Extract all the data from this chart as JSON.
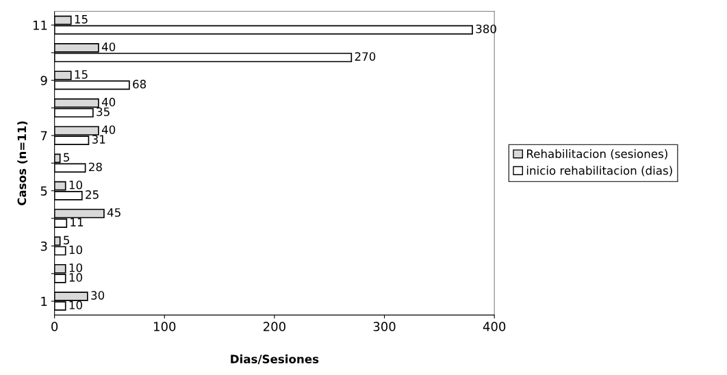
{
  "chart_data": {
    "type": "bar",
    "orientation": "horizontal",
    "xlabel": "Dias/Sesiones",
    "ylabel": "Casos (n=11)",
    "categories": [
      "11",
      null,
      "9",
      null,
      "7",
      null,
      "5",
      null,
      "3",
      null,
      "1"
    ],
    "series": [
      {
        "name": "Rehabilitacion (sesiones)",
        "color": "#d9d9d9",
        "values": [
          15,
          40,
          15,
          40,
          40,
          5,
          10,
          45,
          5,
          10,
          30
        ]
      },
      {
        "name": "inicio rehabilitacion (dias)",
        "color": "#ffffff",
        "values": [
          380,
          270,
          68,
          35,
          31,
          28,
          25,
          11,
          10,
          10,
          10
        ]
      }
    ],
    "xlim": [
      0,
      400
    ],
    "xticks": [
      0,
      100,
      200,
      300,
      400
    ],
    "grid": false,
    "legend": "right",
    "data_labels": true
  }
}
